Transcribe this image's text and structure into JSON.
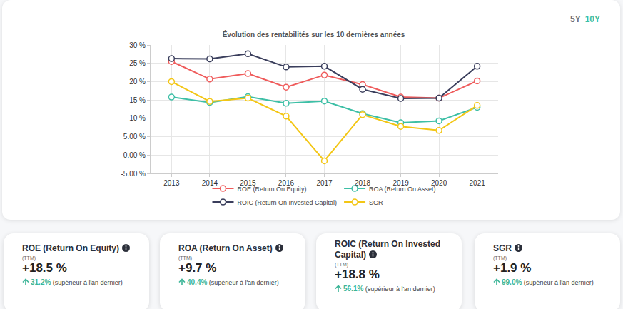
{
  "chart_data": {
    "type": "line",
    "title": "Évolution des rentabilités sur les 10 dernières années",
    "categories": [
      "2013",
      "2014",
      "2015",
      "2016",
      "2017",
      "2018",
      "2019",
      "2020",
      "2021"
    ],
    "series": [
      {
        "name": "ROE (Return On Equity)",
        "color": "#ef5b5b",
        "values": [
          25.5,
          20.7,
          22.2,
          18.5,
          21.8,
          19.2,
          15.8,
          15.5,
          20.2
        ]
      },
      {
        "name": "ROA (Return On Asset)",
        "color": "#3dbfa6",
        "values": [
          15.8,
          14.3,
          15.9,
          14.1,
          14.7,
          11.3,
          8.8,
          9.3,
          13.0
        ]
      },
      {
        "name": "ROIC (Return On Invested Capital)",
        "color": "#3a3e5c",
        "values": [
          26.3,
          26.2,
          27.6,
          24.0,
          24.2,
          17.9,
          15.4,
          15.5,
          24.2
        ]
      },
      {
        "name": "SGR",
        "color": "#f3c615",
        "values": [
          20.0,
          14.6,
          15.5,
          10.6,
          -1.6,
          11.0,
          7.8,
          6.7,
          13.5
        ]
      }
    ],
    "ylim": [
      -5,
      30
    ],
    "yticks": [
      {
        "value": -5,
        "label": "-5.00 %"
      },
      {
        "value": 0,
        "label": "0.00 %"
      },
      {
        "value": 5,
        "label": "5.00 %"
      },
      {
        "value": 10,
        "label": "10 %"
      },
      {
        "value": 15,
        "label": "15 %"
      },
      {
        "value": 20,
        "label": "20 %"
      },
      {
        "value": 25,
        "label": "25 %"
      },
      {
        "value": 30,
        "label": "30 %"
      }
    ],
    "grid": true,
    "legend": "bottom",
    "marker": "circle"
  },
  "buttons": [
    {
      "text": "5Y",
      "color": "#6b7280"
    },
    {
      "text": "10Y",
      "color": "#3dbfa6"
    }
  ],
  "cards": [
    {
      "title": "ROE (Return On Equity)",
      "period": "(TTM)",
      "value": "+18.5 %",
      "change": "31.2%",
      "note": "(supérieur à l'an dernier)"
    },
    {
      "title": "ROA (Return On Asset)",
      "period": "(TTM)",
      "value": "+9.7 %",
      "change": "40.4%",
      "note": "(supérieur à l'an dernier)"
    },
    {
      "title": "ROIC (Return On Invested Capital)",
      "period": "(TTM)",
      "value": "+18.8 %",
      "change": "56.1%",
      "note": "(supérieur à l'an dernier)"
    },
    {
      "title": "SGR",
      "period": "(TTM)",
      "value": "+1.9 %",
      "change": "99.0%",
      "note": "(supérieur à l'an dernier)"
    }
  ]
}
